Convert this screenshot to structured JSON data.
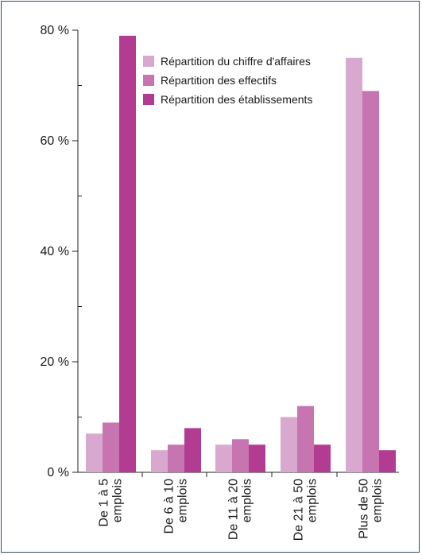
{
  "chart_data": {
    "type": "bar",
    "title": "",
    "xlabel": "",
    "ylabel": "",
    "ylim": [
      0,
      80
    ],
    "yticks": [
      0,
      20,
      40,
      60,
      80
    ],
    "ytick_labels": [
      "0 %",
      "20 %",
      "40 %",
      "60 %",
      "80 %"
    ],
    "grid": false,
    "legend_position": "top-right",
    "categories": [
      [
        "De 1 à 5",
        "emplois"
      ],
      [
        "De 6 à 10",
        "emplois"
      ],
      [
        "De 11 à 20",
        "emplois"
      ],
      [
        "De 21 à 50",
        "emplois"
      ],
      [
        "Plus de 50",
        "emplois"
      ]
    ],
    "series": [
      {
        "name": "Répartition du chiffre d'affaires",
        "color": "#d8a8cf",
        "values": [
          7,
          4,
          5,
          10,
          75
        ]
      },
      {
        "name": "Répartition des effectifs",
        "color": "#c675b0",
        "values": [
          9,
          5,
          6,
          12,
          69
        ]
      },
      {
        "name": "Répartition des établissements",
        "color": "#b23c92",
        "values": [
          79,
          8,
          5,
          5,
          4
        ]
      }
    ]
  }
}
